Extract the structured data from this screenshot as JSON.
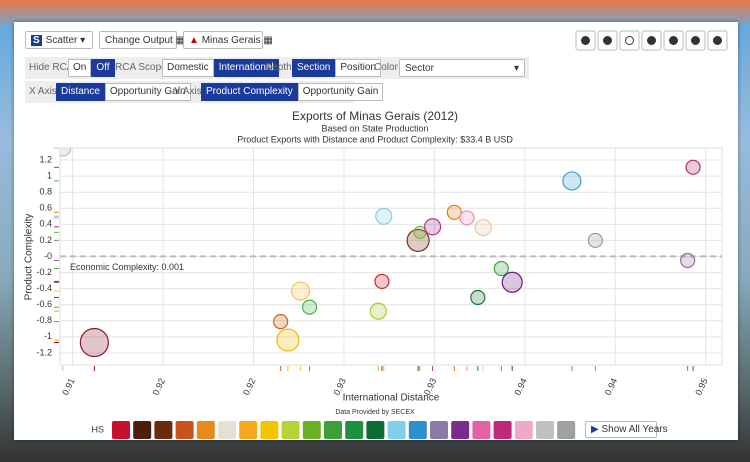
{
  "toolbar": {
    "chart_type": "Scatter",
    "change_output": "Change Output",
    "location": "Minas Gerais"
  },
  "controls": {
    "hide_rca": {
      "label": "Hide RCA",
      "options": [
        "On",
        "Off"
      ],
      "selected": 1
    },
    "rca_scope": {
      "label": "RCA Scope",
      "options": [
        "Domestic",
        "International"
      ],
      "selected": 1
    },
    "depth": {
      "label": "Depth",
      "options": [
        "Section",
        "Position"
      ],
      "selected": 0
    },
    "color": {
      "label": "Color",
      "value": "Sector"
    },
    "x_axis": {
      "label": "X Axis",
      "options": [
        "Distance",
        "Opportunity Gain"
      ],
      "selected": 0
    },
    "y_axis": {
      "label": "Y Axis",
      "options": [
        "Product Complexity",
        "Opportunity Gain"
      ],
      "selected": 0
    }
  },
  "chart_data": {
    "type": "scatter",
    "title": "Exports of Minas Gerais (2012)",
    "subtitle": [
      "Based on State Production",
      "Product Exports with Distance and Product Complexity: $33.4 B USD"
    ],
    "xlabel": "International Distance",
    "ylabel": "Product Complexity",
    "xlim": [
      0.9093,
      0.9459
    ],
    "ylim": [
      -1.35,
      1.35
    ],
    "xticks": [
      0.91,
      {
        "value": 0.915,
        "label": "0.92"
      },
      0.92,
      {
        "value": 0.925,
        "label": "0.93"
      },
      0.93,
      {
        "value": 0.935,
        "label": "0.94"
      },
      0.94,
      {
        "value": 0.945,
        "label": "0.95"
      }
    ],
    "yticks": [
      1.2,
      1,
      0.8,
      0.6,
      0.4,
      0.2,
      {
        "value": 0,
        "label": "-0"
      },
      -0.2,
      -0.4,
      -0.6,
      -0.8,
      -1,
      -1.2
    ],
    "grid": true,
    "reference": {
      "value": 0.001,
      "label": "Economic Complexity: 0.001"
    },
    "x": [
      0.90945,
      0.9112,
      0.9215,
      0.9219,
      0.9226,
      0.9231,
      0.9271,
      0.9269,
      0.9272,
      0.9291,
      0.9292,
      0.9299,
      0.9311,
      0.9318,
      0.9327,
      0.9324,
      0.9337,
      0.9343,
      0.9376,
      0.9389,
      0.944,
      0.9443
    ],
    "values": [
      1.35,
      -1.07,
      -0.81,
      -1.04,
      -0.43,
      -0.63,
      -0.31,
      -0.68,
      0.5,
      0.2,
      0.3,
      0.37,
      0.55,
      0.48,
      0.36,
      -0.51,
      -0.15,
      -0.32,
      0.94,
      0.2,
      -0.05,
      1.11
    ],
    "sizes": [
      8,
      14,
      7,
      11,
      9,
      7,
      7,
      8,
      8,
      11,
      6,
      8,
      7,
      7,
      8,
      7,
      7,
      10,
      9,
      7,
      7,
      7
    ],
    "colors": [
      "#bbbbbb",
      "#8b1a2b",
      "#c8651c",
      "#f2b800",
      "#f2c94c",
      "#4caf50",
      "#c62828",
      "#a4cc2c",
      "#7fcfe6",
      "#7b3010",
      "#7cb342",
      "#b0378e",
      "#e07b18",
      "#e889b8",
      "#e9c9a0",
      "#1e7a32",
      "#3aa040",
      "#6a1b7a",
      "#3aa0d8",
      "#999999",
      "#9a6aa0",
      "#b0306e"
    ]
  },
  "footer": {
    "source": "Data Provided by SECEX",
    "classification": "HS",
    "show_all_years": "Show All Years"
  }
}
